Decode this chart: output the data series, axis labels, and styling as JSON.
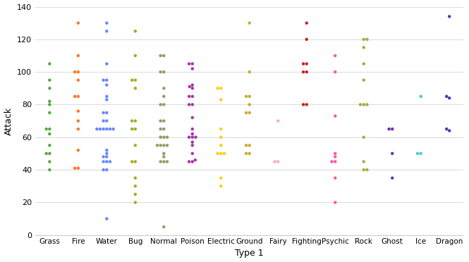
{
  "title": "",
  "xlabel": "Type 1",
  "ylabel": "Attack",
  "ylim": [
    0,
    140
  ],
  "figsize": [
    6.65,
    3.72
  ],
  "dpi": 100,
  "background_color": "#ffffff",
  "grid_color": "#dddddd",
  "categories": [
    "Grass",
    "Fire",
    "Water",
    "Bug",
    "Normal",
    "Poison",
    "Electric",
    "Ground",
    "Fairy",
    "Fighting",
    "Psychic",
    "Rock",
    "Ghost",
    "Ice",
    "Dragon"
  ],
  "colors": {
    "Grass": "#55aa44",
    "Fire": "#ff7722",
    "Water": "#6688ff",
    "Bug": "#aaaa22",
    "Normal": "#999966",
    "Poison": "#aa33aa",
    "Electric": "#ffcc11",
    "Ground": "#ccaa33",
    "Fairy": "#ffaabb",
    "Fighting": "#cc2222",
    "Psychic": "#ff55aa",
    "Rock": "#aaaa44",
    "Ghost": "#6633aa",
    "Ice": "#44cccc",
    "Dragon": "#5533bb"
  },
  "data": {
    "Grass": [
      105,
      95,
      90,
      82,
      80,
      75,
      65,
      65,
      62,
      55,
      50,
      50,
      45,
      40
    ],
    "Fire": [
      130,
      110,
      100,
      100,
      95,
      85,
      85,
      76,
      70,
      65,
      52,
      41,
      41
    ],
    "Water": [
      130,
      125,
      105,
      95,
      95,
      92,
      85,
      83,
      75,
      75,
      70,
      70,
      65,
      65,
      65,
      65,
      65,
      65,
      52,
      50,
      48,
      48,
      45,
      45,
      45,
      40,
      40,
      10
    ],
    "Bug": [
      125,
      110,
      95,
      95,
      90,
      70,
      70,
      65,
      65,
      55,
      45,
      45,
      35,
      30,
      25,
      20
    ],
    "Normal": [
      110,
      110,
      100,
      100,
      90,
      85,
      80,
      80,
      70,
      70,
      65,
      65,
      60,
      60,
      60,
      55,
      55,
      55,
      55,
      50,
      48,
      45,
      45,
      45,
      5
    ],
    "Poison": [
      105,
      105,
      102,
      92,
      91,
      90,
      85,
      85,
      80,
      80,
      72,
      65,
      62,
      60,
      60,
      60,
      57,
      55,
      50,
      46,
      45,
      45
    ],
    "Electric": [
      90,
      90,
      83,
      65,
      60,
      55,
      50,
      50,
      50,
      35,
      30
    ],
    "Ground": [
      130,
      100,
      85,
      85,
      80,
      75,
      75,
      55,
      55,
      50,
      50
    ],
    "Fairy": [
      70,
      45,
      45
    ],
    "Fighting": [
      130,
      120,
      105,
      105,
      100,
      100,
      80,
      80
    ],
    "Psychic": [
      110,
      100,
      73,
      50,
      48,
      45,
      45,
      35,
      20
    ],
    "Rock": [
      120,
      120,
      115,
      105,
      95,
      80,
      80,
      80,
      60,
      45,
      40,
      40
    ],
    "Ghost": [
      65,
      65,
      50,
      35
    ],
    "Ice": [
      85,
      50,
      50
    ],
    "Dragon": [
      134,
      85,
      84,
      65,
      64
    ]
  }
}
